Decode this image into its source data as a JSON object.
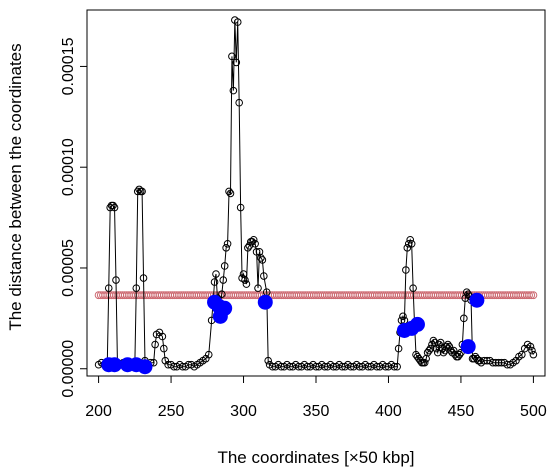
{
  "chart_data": {
    "type": "scatter",
    "xlabel": "The coordinates [×50 kbp]",
    "ylabel": "The distance between the coordinates",
    "xlim": [
      192,
      508
    ],
    "ylim": [
      -3.6e-06,
      0.000178
    ],
    "x_ticks": [
      200,
      250,
      300,
      350,
      400,
      450,
      500
    ],
    "x_tick_labels": [
      "200",
      "250",
      "300",
      "350",
      "400",
      "450",
      "500"
    ],
    "y_ticks": [
      0,
      5e-05,
      0.0001,
      0.00015
    ],
    "y_tick_labels": [
      "0.00000",
      "0.00005",
      "0.00010",
      "0.00015"
    ],
    "grid": false,
    "threshold": {
      "y": 3.65e-05,
      "x_range": [
        200,
        500
      ],
      "color": "#cd6b73"
    },
    "series": [
      {
        "style": "line+open-circles",
        "color": "#000000",
        "points": [
          [
            200,
            2e-06
          ],
          [
            202,
            3e-06
          ],
          [
            204,
            2e-06
          ],
          [
            206,
            3e-06
          ],
          [
            207,
            4e-05
          ],
          [
            208,
            8e-05
          ],
          [
            209,
            8.1e-05
          ],
          [
            210,
            8.1e-05
          ],
          [
            211,
            8e-05
          ],
          [
            212,
            4.4e-05
          ],
          [
            213,
            3e-06
          ],
          [
            215,
            2e-06
          ],
          [
            217,
            3e-06
          ],
          [
            219,
            2e-06
          ],
          [
            221,
            3e-06
          ],
          [
            223,
            2e-06
          ],
          [
            225,
            2e-06
          ],
          [
            226,
            4e-05
          ],
          [
            227,
            8.8e-05
          ],
          [
            228,
            8.9e-05
          ],
          [
            229,
            8.8e-05
          ],
          [
            230,
            8.8e-05
          ],
          [
            231,
            4.5e-05
          ],
          [
            232,
            4e-06
          ],
          [
            234,
            2e-06
          ],
          [
            236,
            3e-06
          ],
          [
            238,
            3e-06
          ],
          [
            239,
            1.2e-05
          ],
          [
            240,
            1.7e-05
          ],
          [
            242,
            1.8e-05
          ],
          [
            244,
            1.6e-05
          ],
          [
            245,
            1e-05
          ],
          [
            246,
            4e-06
          ],
          [
            248,
            2e-06
          ],
          [
            250,
            2e-06
          ],
          [
            252,
            1e-06
          ],
          [
            254,
            1e-06
          ],
          [
            256,
            2e-06
          ],
          [
            258,
            1e-06
          ],
          [
            260,
            1e-06
          ],
          [
            262,
            2e-06
          ],
          [
            264,
            2e-06
          ],
          [
            266,
            1e-06
          ],
          [
            268,
            2e-06
          ],
          [
            270,
            3e-06
          ],
          [
            272,
            4e-06
          ],
          [
            274,
            5e-06
          ],
          [
            276,
            7e-06
          ],
          [
            278,
            2.4e-05
          ],
          [
            279,
            3.3e-05
          ],
          [
            280,
            4.3e-05
          ],
          [
            281,
            4.7e-05
          ],
          [
            282,
            3.5e-05
          ],
          [
            283,
            2.8e-05
          ],
          [
            284,
            3.2e-05
          ],
          [
            285,
            3.7e-05
          ],
          [
            286,
            4.4e-05
          ],
          [
            287,
            5.1e-05
          ],
          [
            288,
            6e-05
          ],
          [
            289,
            6.2e-05
          ],
          [
            290,
            8.8e-05
          ],
          [
            291,
            8.7e-05
          ],
          [
            292,
            0.000155
          ],
          [
            293,
            0.000138
          ],
          [
            294,
            0.000173
          ],
          [
            295,
            0.000152
          ],
          [
            296,
            0.000172
          ],
          [
            297,
            0.000132
          ],
          [
            298,
            8e-05
          ],
          [
            299,
            4.5e-05
          ],
          [
            300,
            4.7e-05
          ],
          [
            301,
            4.4e-05
          ],
          [
            302,
            4.2e-05
          ],
          [
            303,
            6e-05
          ],
          [
            304,
            6.1e-05
          ],
          [
            305,
            6.3e-05
          ],
          [
            306,
            6.3e-05
          ],
          [
            307,
            6.4e-05
          ],
          [
            308,
            6.2e-05
          ],
          [
            309,
            5.8e-05
          ],
          [
            310,
            4e-05
          ],
          [
            311,
            5.8e-05
          ],
          [
            312,
            5.5e-05
          ],
          [
            313,
            5.4e-05
          ],
          [
            314,
            4.6e-05
          ],
          [
            316,
            3.8e-05
          ],
          [
            317,
            4e-06
          ],
          [
            318,
            2e-06
          ],
          [
            320,
            1e-06
          ],
          [
            322,
            1e-06
          ],
          [
            324,
            2e-06
          ],
          [
            326,
            1e-06
          ],
          [
            328,
            1e-06
          ],
          [
            330,
            2e-06
          ],
          [
            332,
            1e-06
          ],
          [
            334,
            1e-06
          ],
          [
            336,
            2e-06
          ],
          [
            338,
            1e-06
          ],
          [
            340,
            1e-06
          ],
          [
            342,
            2e-06
          ],
          [
            344,
            1e-06
          ],
          [
            346,
            1e-06
          ],
          [
            348,
            2e-06
          ],
          [
            350,
            1e-06
          ],
          [
            352,
            1e-06
          ],
          [
            354,
            2e-06
          ],
          [
            356,
            1e-06
          ],
          [
            358,
            1e-06
          ],
          [
            360,
            2e-06
          ],
          [
            362,
            1e-06
          ],
          [
            364,
            1e-06
          ],
          [
            366,
            2e-06
          ],
          [
            368,
            1e-06
          ],
          [
            370,
            1e-06
          ],
          [
            372,
            2e-06
          ],
          [
            374,
            1e-06
          ],
          [
            376,
            1e-06
          ],
          [
            378,
            2e-06
          ],
          [
            380,
            1e-06
          ],
          [
            382,
            1e-06
          ],
          [
            384,
            2e-06
          ],
          [
            386,
            1e-06
          ],
          [
            388,
            1e-06
          ],
          [
            390,
            2e-06
          ],
          [
            392,
            1e-06
          ],
          [
            394,
            1e-06
          ],
          [
            396,
            2e-06
          ],
          [
            398,
            1e-06
          ],
          [
            400,
            1e-06
          ],
          [
            402,
            2e-06
          ],
          [
            404,
            1e-06
          ],
          [
            406,
            1e-06
          ],
          [
            407,
            1e-05
          ],
          [
            408,
            1.8e-05
          ],
          [
            409,
            2.4e-05
          ],
          [
            410,
            2.6e-05
          ],
          [
            411,
            2.4e-05
          ],
          [
            412,
            4.9e-05
          ],
          [
            413,
            6e-05
          ],
          [
            414,
            6.2e-05
          ],
          [
            415,
            6.4e-05
          ],
          [
            416,
            6.2e-05
          ],
          [
            417,
            4e-05
          ],
          [
            418,
            2.2e-05
          ],
          [
            419,
            7e-06
          ],
          [
            420,
            6e-06
          ],
          [
            421,
            5e-06
          ],
          [
            422,
            4e-06
          ],
          [
            423,
            3e-06
          ],
          [
            424,
            3e-06
          ],
          [
            425,
            3e-06
          ],
          [
            426,
            5e-06
          ],
          [
            427,
            8e-06
          ],
          [
            428,
            9e-06
          ],
          [
            429,
            1e-05
          ],
          [
            430,
            1.2e-05
          ],
          [
            431,
            1.4e-05
          ],
          [
            432,
            1.3e-05
          ],
          [
            433,
            1e-05
          ],
          [
            434,
            8e-06
          ],
          [
            435,
            1.2e-05
          ],
          [
            436,
            1.3e-05
          ],
          [
            437,
            1e-05
          ],
          [
            438,
            8e-06
          ],
          [
            439,
            9e-06
          ],
          [
            440,
            1.1e-05
          ],
          [
            441,
            1.2e-05
          ],
          [
            442,
            1.1e-05
          ],
          [
            443,
            9e-06
          ],
          [
            444,
            8e-06
          ],
          [
            445,
            9e-06
          ],
          [
            446,
            7e-06
          ],
          [
            447,
            6e-06
          ],
          [
            448,
            6e-06
          ],
          [
            449,
            7e-06
          ],
          [
            450,
            8e-06
          ],
          [
            451,
            1.2e-05
          ],
          [
            452,
            2.5e-05
          ],
          [
            453,
            3.5e-05
          ],
          [
            454,
            3.8e-05
          ],
          [
            455,
            3.7e-05
          ],
          [
            456,
            3.6e-05
          ],
          [
            457,
            3.4e-05
          ],
          [
            458,
            5e-06
          ],
          [
            459,
            5e-06
          ],
          [
            460,
            6e-06
          ],
          [
            461,
            5e-06
          ],
          [
            462,
            4e-06
          ],
          [
            463,
            4e-06
          ],
          [
            464,
            3e-06
          ],
          [
            466,
            4e-06
          ],
          [
            468,
            4e-06
          ],
          [
            470,
            4e-06
          ],
          [
            472,
            3e-06
          ],
          [
            474,
            3e-06
          ],
          [
            476,
            3e-06
          ],
          [
            478,
            3e-06
          ],
          [
            480,
            3e-06
          ],
          [
            482,
            2e-06
          ],
          [
            484,
            2e-06
          ],
          [
            486,
            3e-06
          ],
          [
            488,
            4e-06
          ],
          [
            490,
            6e-06
          ],
          [
            492,
            7e-06
          ],
          [
            494,
            1e-05
          ],
          [
            496,
            1.2e-05
          ],
          [
            498,
            1.1e-05
          ],
          [
            499,
            9e-06
          ],
          [
            500,
            7e-06
          ]
        ]
      },
      {
        "style": "filled-circles",
        "color": "#0000ff",
        "points": [
          [
            207,
            2e-06
          ],
          [
            211,
            2e-06
          ],
          [
            220,
            2e-06
          ],
          [
            226,
            2e-06
          ],
          [
            232,
            1e-06
          ],
          [
            280,
            3.3e-05
          ],
          [
            283,
            3.1e-05
          ],
          [
            284,
            2.6e-05
          ],
          [
            285,
            2.9e-05
          ],
          [
            287,
            3e-05
          ],
          [
            315,
            3.3e-05
          ],
          [
            411,
            1.9e-05
          ],
          [
            416,
            2e-05
          ],
          [
            420,
            2.2e-05
          ],
          [
            455,
            1.1e-05
          ],
          [
            461,
            3.4e-05
          ]
        ]
      }
    ]
  }
}
